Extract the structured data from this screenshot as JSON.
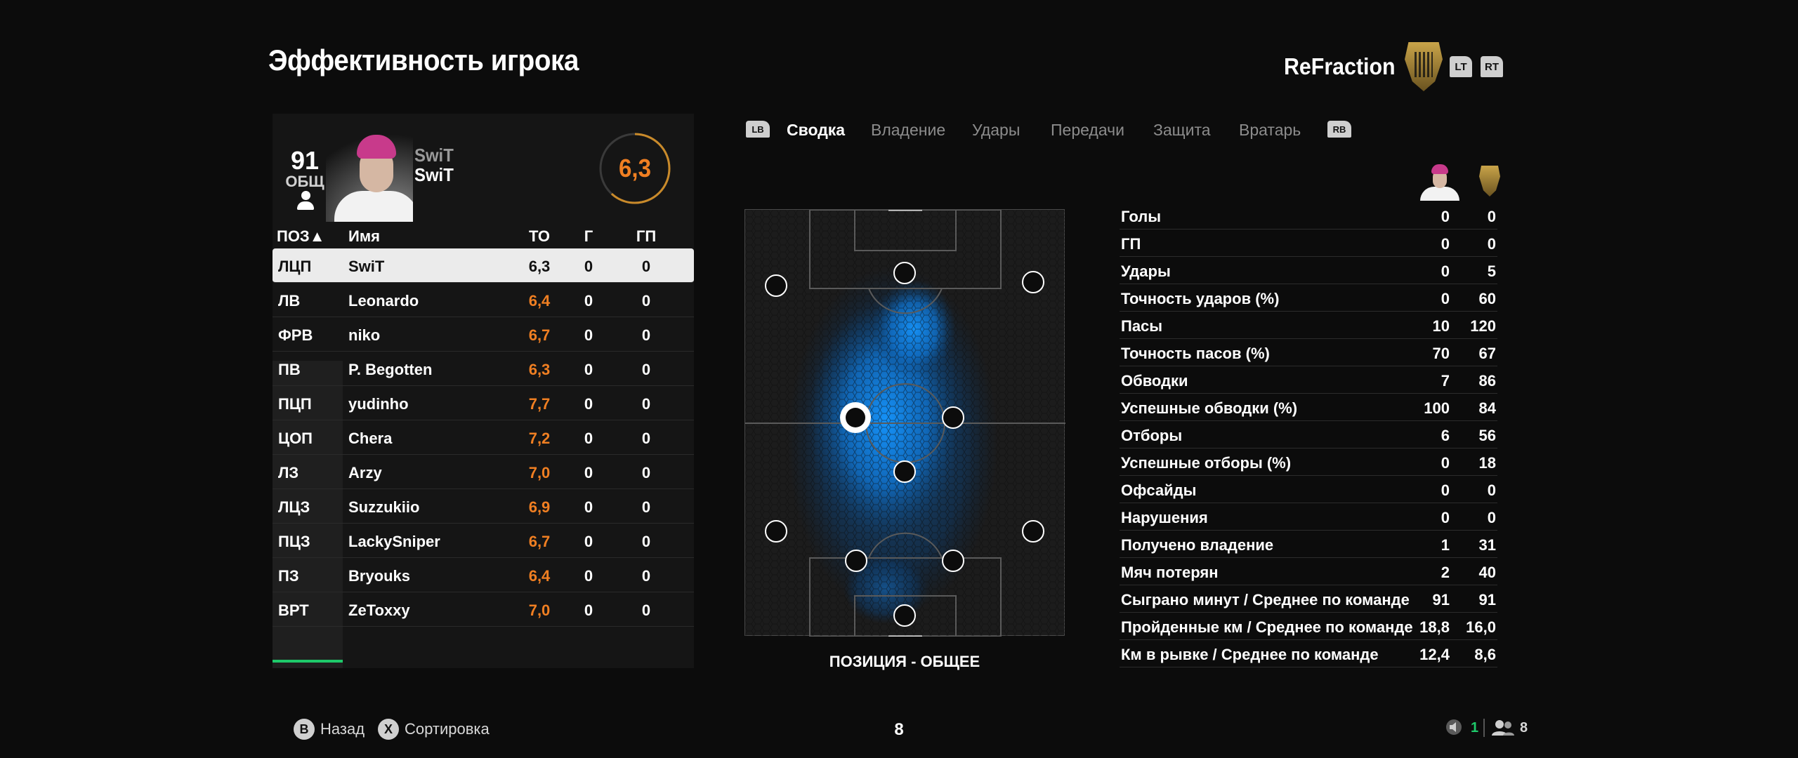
{
  "header": {
    "title": "Эффективность игрока",
    "team_name": "ReFraction",
    "lt_label": "LT",
    "rt_label": "RT"
  },
  "player_card": {
    "overall": "91",
    "overall_label": "ОБЩ",
    "name_top": "SwiT",
    "name": "SwiT",
    "match_rating": "6,3",
    "rating_color": "#f07f22"
  },
  "table": {
    "headers": {
      "pos": "ПОЗ▲",
      "name": "Имя",
      "to": "ТО",
      "g": "Г",
      "gp": "ГП"
    },
    "rows": [
      {
        "pos": "ЛЦП",
        "name": "SwiT",
        "to": "6,3",
        "g": "0",
        "gp": "0"
      },
      {
        "pos": "ЛВ",
        "name": "Leonardo",
        "to": "6,4",
        "g": "0",
        "gp": "0"
      },
      {
        "pos": "ФРВ",
        "name": "niko",
        "to": "6,7",
        "g": "0",
        "gp": "0"
      },
      {
        "pos": "ПВ",
        "name": "P. Begotten",
        "to": "6,3",
        "g": "0",
        "gp": "0"
      },
      {
        "pos": "ПЦП",
        "name": "yudinho",
        "to": "7,7",
        "g": "0",
        "gp": "0"
      },
      {
        "pos": "ЦОП",
        "name": "Chera",
        "to": "7,2",
        "g": "0",
        "gp": "0"
      },
      {
        "pos": "ЛЗ",
        "name": "Arzy",
        "to": "7,0",
        "g": "0",
        "gp": "0"
      },
      {
        "pos": "ЛЦЗ",
        "name": "Suzzukiio",
        "to": "6,9",
        "g": "0",
        "gp": "0"
      },
      {
        "pos": "ПЦЗ",
        "name": "LackySniper",
        "to": "6,7",
        "g": "0",
        "gp": "0"
      },
      {
        "pos": "ПЗ",
        "name": "Bryouks",
        "to": "6,4",
        "g": "0",
        "gp": "0"
      },
      {
        "pos": "ВРТ",
        "name": "ZeToxxy",
        "to": "7,0",
        "g": "0",
        "gp": "0"
      }
    ]
  },
  "tabs": {
    "lb": "LB",
    "rb": "RB",
    "items": [
      "Сводка",
      "Владение",
      "Удары",
      "Передачи",
      "Защита",
      "Вратарь"
    ]
  },
  "pitch": {
    "caption": "ПОЗИЦИЯ - ОБЩЕЕ"
  },
  "stats": [
    {
      "label": "Голы",
      "player": "0",
      "team": "0"
    },
    {
      "label": "ГП",
      "player": "0",
      "team": "0"
    },
    {
      "label": "Удары",
      "player": "0",
      "team": "5"
    },
    {
      "label": "Точность ударов (%)",
      "player": "0",
      "team": "60"
    },
    {
      "label": "Пасы",
      "player": "10",
      "team": "120"
    },
    {
      "label": "Точность пасов (%)",
      "player": "70",
      "team": "67"
    },
    {
      "label": "Обводки",
      "player": "7",
      "team": "86"
    },
    {
      "label": "Успешные обводки (%)",
      "player": "100",
      "team": "84"
    },
    {
      "label": "Отборы",
      "player": "6",
      "team": "56"
    },
    {
      "label": "Успешные отборы (%)",
      "player": "0",
      "team": "18"
    },
    {
      "label": "Офсайды",
      "player": "0",
      "team": "0"
    },
    {
      "label": "Нарушения",
      "player": "0",
      "team": "0"
    },
    {
      "label": "Получено владение",
      "player": "1",
      "team": "31"
    },
    {
      "label": "Мяч потерян",
      "player": "2",
      "team": "40"
    },
    {
      "label": "Сыграно минут / Среднее по команде",
      "player": "91",
      "team": "91"
    },
    {
      "label": "Пройденные км / Среднее по команде",
      "player": "18,8",
      "team": "16,0"
    },
    {
      "label": "Км в рывке / Среднее по команде",
      "player": "12,4",
      "team": "8,6"
    }
  ],
  "footer": {
    "back_button": "B",
    "back_label": "Назад",
    "sort_button": "X",
    "sort_label": "Сортировка",
    "page_number": "8",
    "mic_count": "1",
    "party_count": "8"
  }
}
